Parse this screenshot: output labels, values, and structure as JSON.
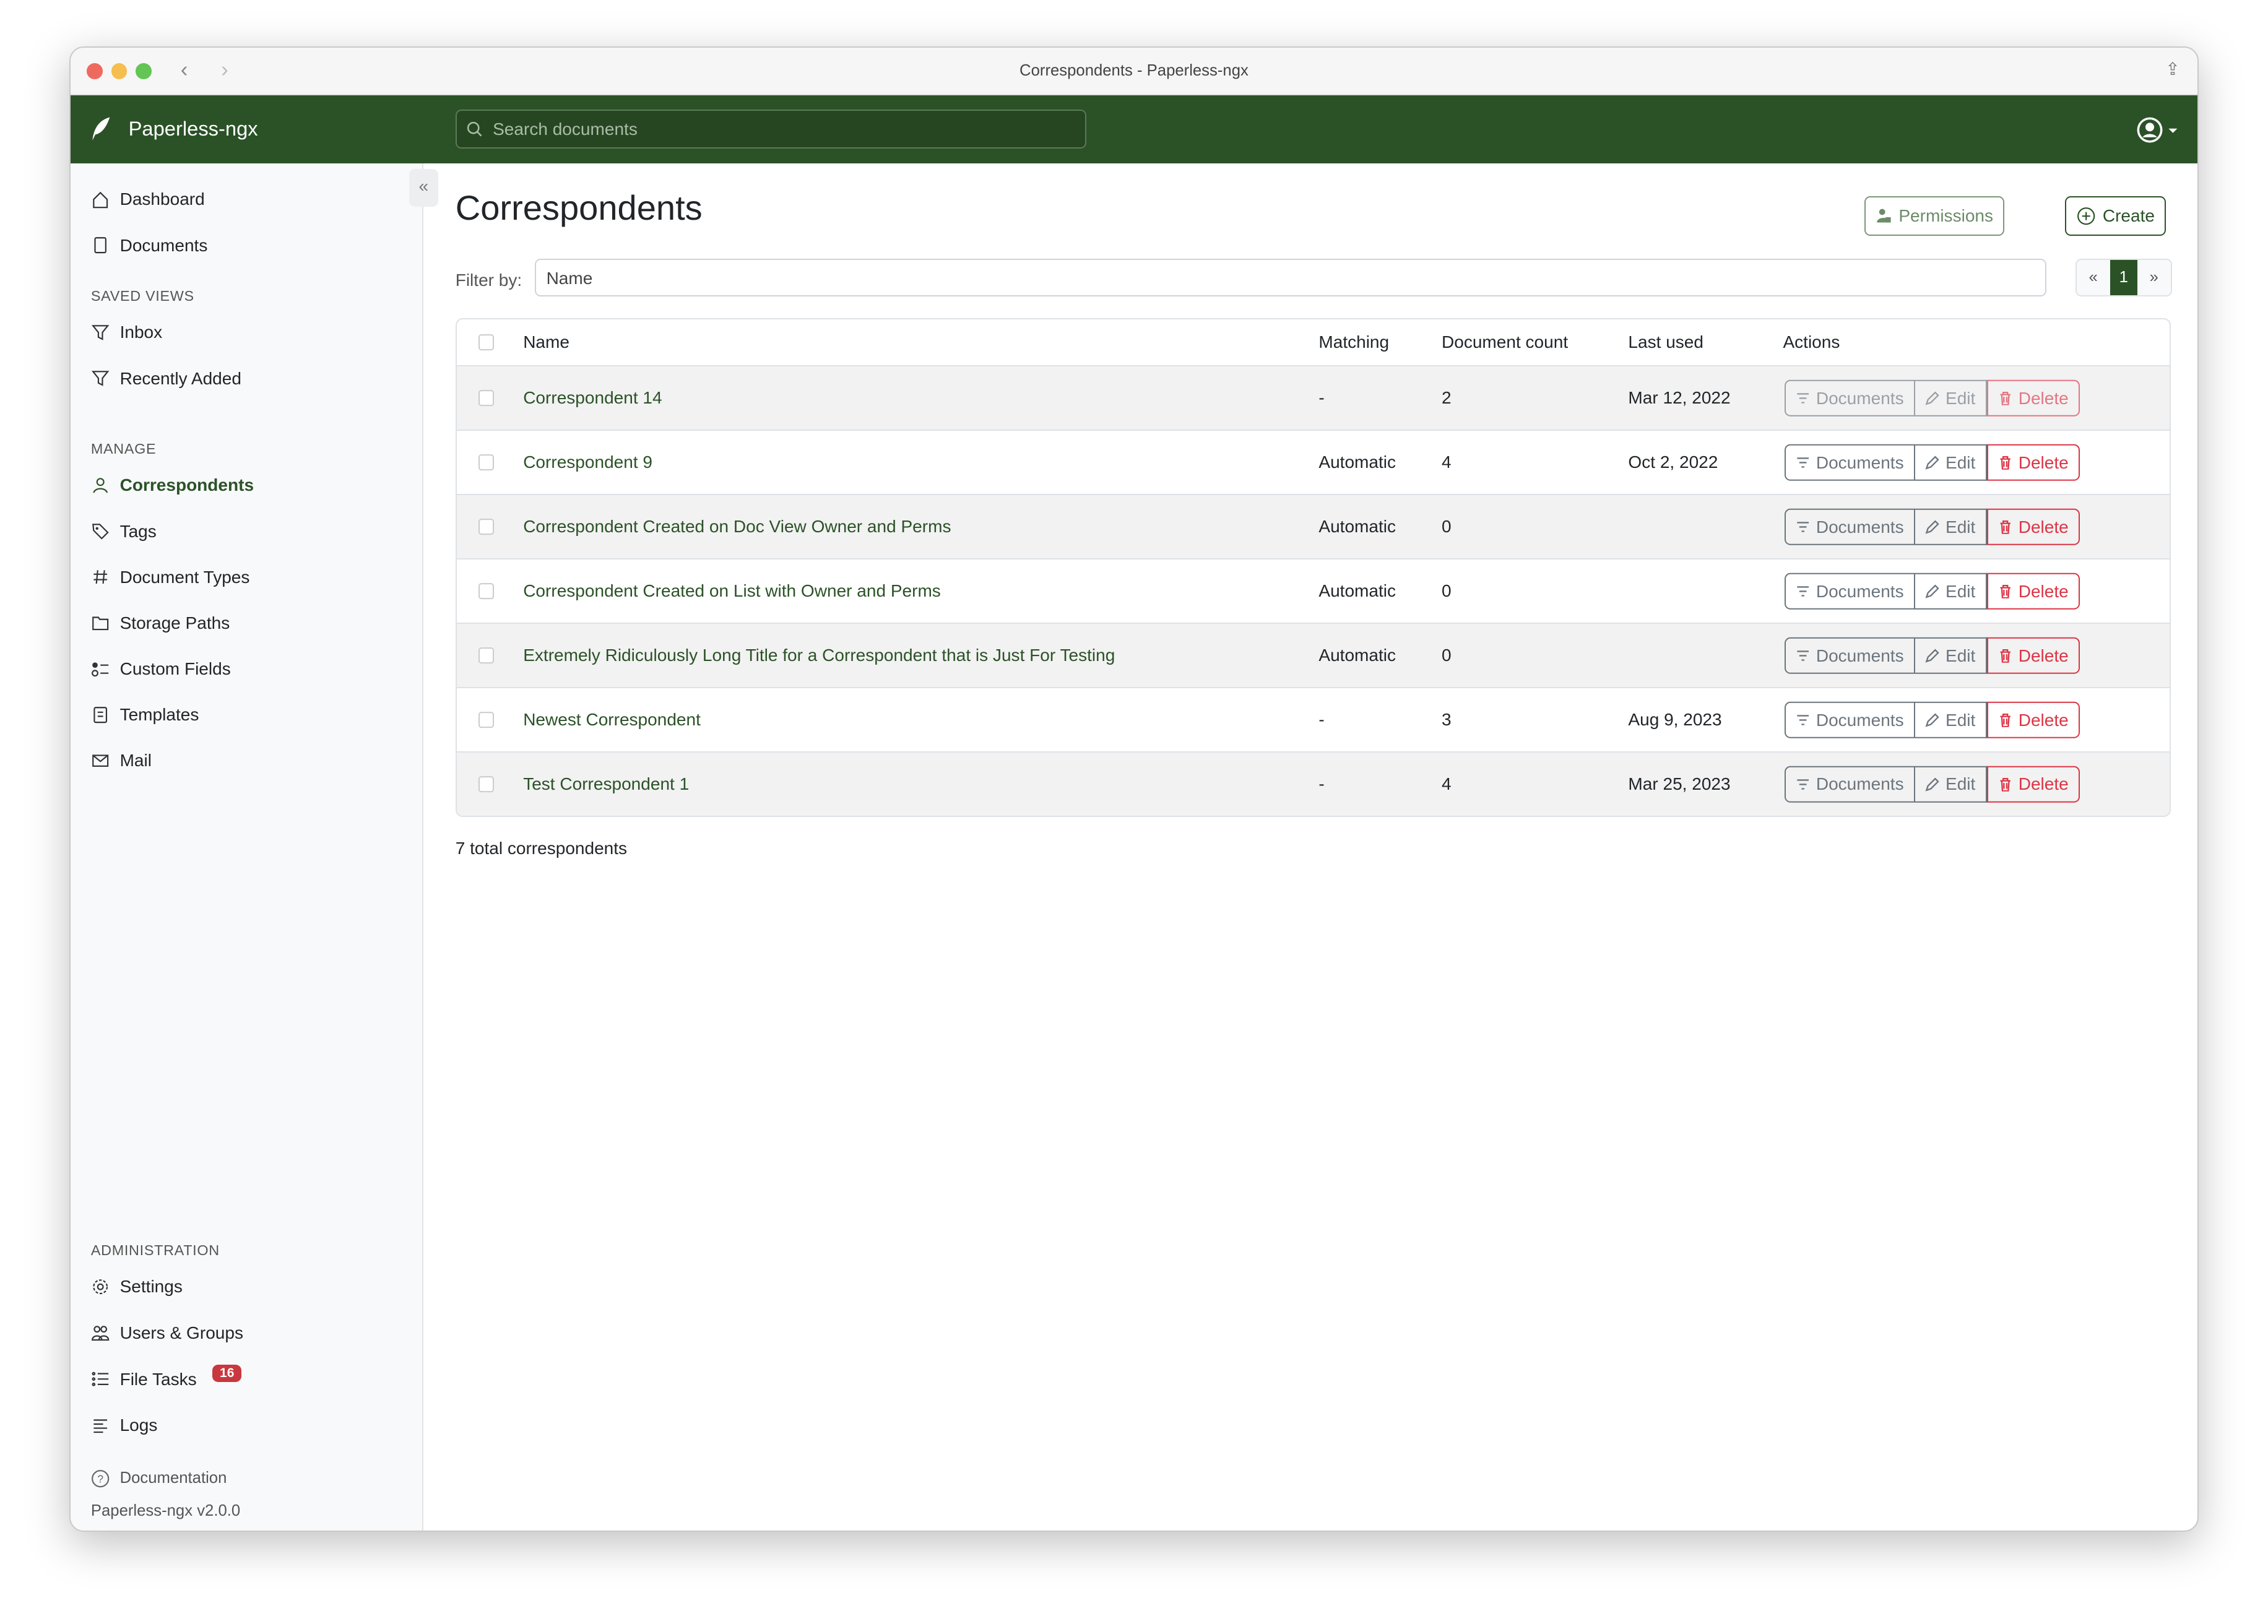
{
  "window": {
    "title": "Correspondents - Paperless-ngx"
  },
  "header": {
    "brand": "Paperless-ngx",
    "search_placeholder": "Search documents"
  },
  "sidebar": {
    "items": [
      {
        "label": "Dashboard",
        "icon": "house-icon"
      },
      {
        "label": "Documents",
        "icon": "files-icon"
      }
    ],
    "saved_views_title": "SAVED VIEWS",
    "saved_views": [
      {
        "label": "Inbox",
        "icon": "funnel-icon"
      },
      {
        "label": "Recently Added",
        "icon": "funnel-icon"
      }
    ],
    "manage_title": "MANAGE",
    "manage": [
      {
        "label": "Correspondents",
        "icon": "person-icon",
        "active": true
      },
      {
        "label": "Tags",
        "icon": "tags-icon"
      },
      {
        "label": "Document Types",
        "icon": "hash-icon"
      },
      {
        "label": "Storage Paths",
        "icon": "folder-icon"
      },
      {
        "label": "Custom Fields",
        "icon": "ui-radios-icon"
      },
      {
        "label": "Templates",
        "icon": "file-text-icon"
      },
      {
        "label": "Mail",
        "icon": "envelope-icon"
      }
    ],
    "admin_title": "ADMINISTRATION",
    "admin": [
      {
        "label": "Settings",
        "icon": "gear-icon"
      },
      {
        "label": "Users & Groups",
        "icon": "people-icon"
      },
      {
        "label": "File Tasks",
        "icon": "list-task-icon",
        "badge": "16"
      },
      {
        "label": "Logs",
        "icon": "text-left-icon"
      }
    ],
    "documentation": "Documentation",
    "version": "Paperless-ngx v2.0.0"
  },
  "main": {
    "title": "Correspondents",
    "permissions_label": "Permissions",
    "create_label": "Create",
    "filter_label": "Filter by:",
    "filter_placeholder": "Name",
    "pager": {
      "prev": "«",
      "current": "1",
      "next": "»"
    },
    "columns": [
      "Name",
      "Matching",
      "Document count",
      "Last used",
      "Actions"
    ],
    "actions": {
      "documents": "Documents",
      "edit": "Edit",
      "delete": "Delete"
    },
    "rows": [
      {
        "name": "Correspondent 14",
        "matching": "-",
        "count": "2",
        "last_used": "Mar 12, 2022",
        "disabled": true
      },
      {
        "name": "Correspondent 9",
        "matching": "Automatic",
        "count": "4",
        "last_used": "Oct 2, 2022"
      },
      {
        "name": "Correspondent Created on Doc View Owner and Perms",
        "matching": "Automatic",
        "count": "0",
        "last_used": ""
      },
      {
        "name": "Correspondent Created on List with Owner and Perms",
        "matching": "Automatic",
        "count": "0",
        "last_used": ""
      },
      {
        "name": "Extremely Ridiculously Long Title for a Correspondent that is Just For Testing",
        "matching": "Automatic",
        "count": "0",
        "last_used": ""
      },
      {
        "name": "Newest Correspondent",
        "matching": "-",
        "count": "3",
        "last_used": "Aug 9, 2023"
      },
      {
        "name": "Test Correspondent 1",
        "matching": "-",
        "count": "4",
        "last_used": "Mar 25, 2023"
      }
    ],
    "total": "7 total correspondents"
  },
  "colors": {
    "primary": "#2b5227",
    "danger": "#dc3545",
    "badge": "#c9373f"
  }
}
